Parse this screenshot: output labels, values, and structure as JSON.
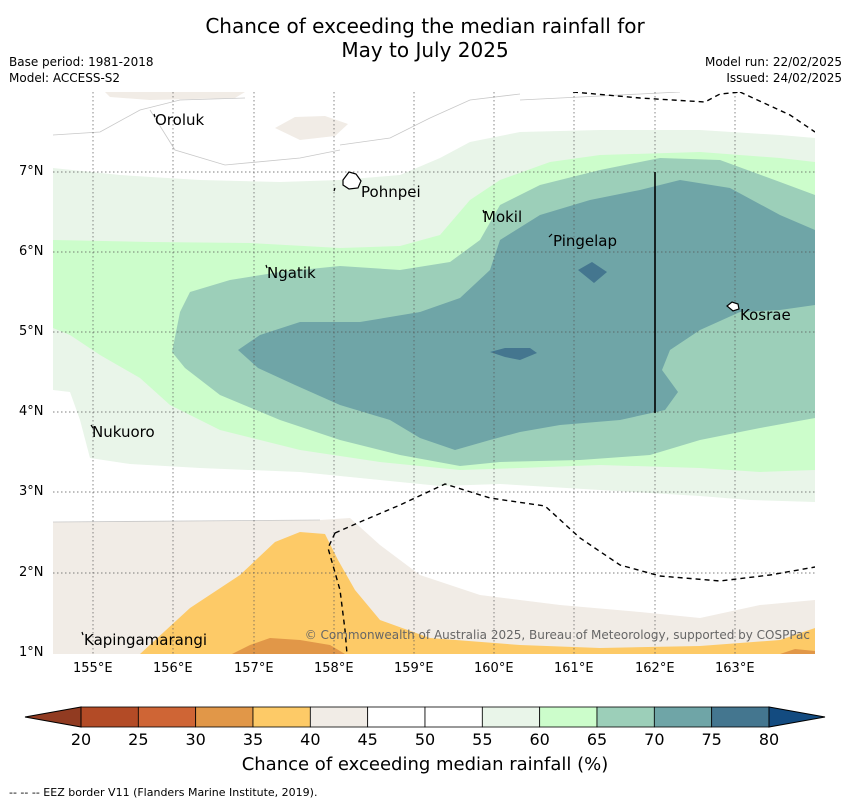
{
  "title": {
    "line1": "Chance of exceeding the median rainfall for",
    "line2": "May to July 2025"
  },
  "meta": {
    "base_period": "Base period: 1981-2018",
    "model": "Model: ACCESS-S2",
    "model_run": "Model run: 22/02/2025",
    "issued": "Issued: 24/02/2025"
  },
  "places": {
    "oroluk": "Oroluk",
    "pohnpei": "Pohnpei",
    "mokil": "Mokil",
    "pingelap": "Pingelap",
    "ngatik": "Ngatik",
    "kosrae": "Kosrae",
    "nukuoro": "Nukuoro",
    "kapingamarangi": "Kapingamarangi"
  },
  "axes": {
    "lon_labels": [
      "155°E",
      "156°E",
      "157°E",
      "158°E",
      "159°E",
      "160°E",
      "161°E",
      "162°E",
      "163°E"
    ],
    "lat_labels": [
      "7°N",
      "6°N",
      "5°N",
      "4°N",
      "3°N",
      "2°N",
      "1°N"
    ]
  },
  "colorbar": {
    "ticks": [
      "20",
      "25",
      "30",
      "35",
      "40",
      "45",
      "50",
      "55",
      "60",
      "65",
      "70",
      "75",
      "80"
    ],
    "colors": [
      "#b34b26",
      "#cf6535",
      "#e19748",
      "#fdca67",
      "#f1ece6",
      "#ffffff",
      "#ffffff",
      "#e9f5e9",
      "#ccfdcb",
      "#9ccfb9",
      "#6fa5a7",
      "#44768f"
    ],
    "under_color": "#913b21",
    "over_color": "#134b80",
    "label": "Chance of exceeding median rainfall (%)"
  },
  "credit": "© Commonwealth of Australia 2025, Bureau of Meteorology, supported by COSPPac",
  "footer": "-- -- -- EEZ border V11 (Flanders Marine Institute, 2019)."
}
